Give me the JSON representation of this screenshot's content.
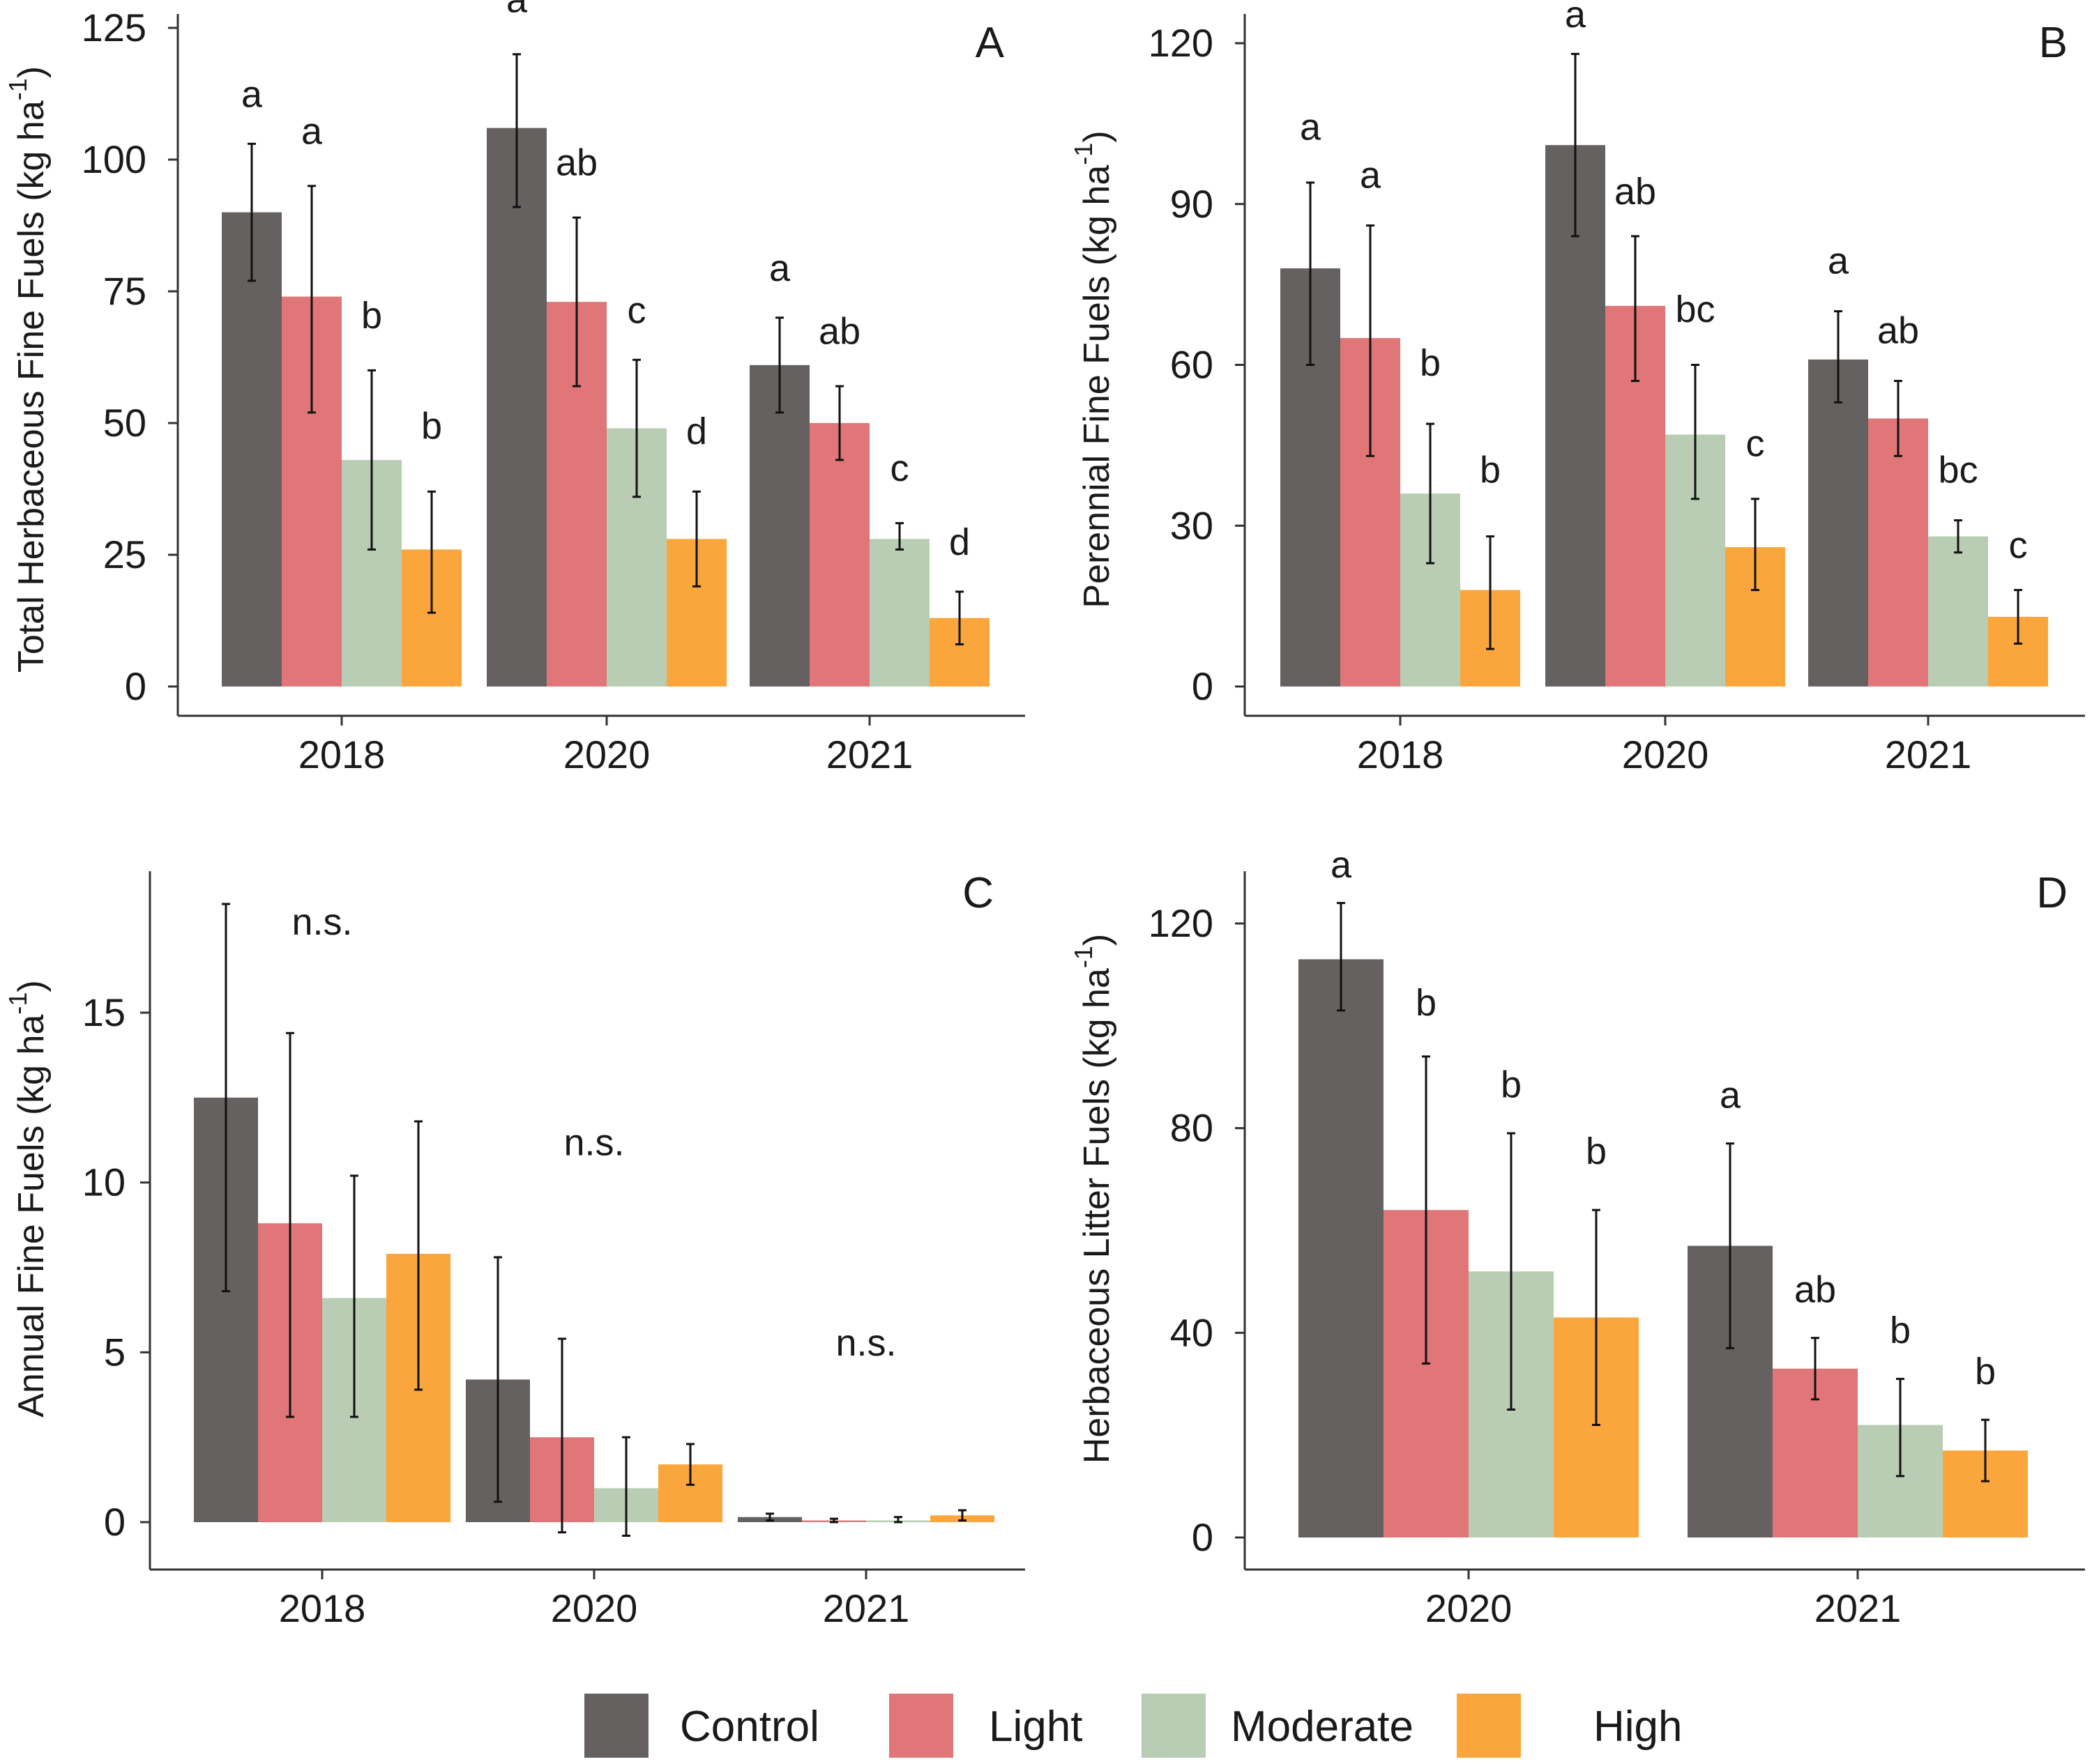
{
  "colors": {
    "Control": "#666161",
    "Light": "#e07677",
    "Moderate": "#b8cdb3",
    "High": "#fba63c"
  },
  "legend": {
    "items": [
      "Control",
      "Light",
      "Moderate",
      "High"
    ]
  },
  "chart_data": [
    {
      "type": "bar",
      "panel": "A",
      "ylabel": "Total Herbaceous Fine Fuels (kg ha",
      "ylabel_sup": "-1",
      "ylabel_tail": ")",
      "ylim": [
        0,
        125
      ],
      "yticks": [
        0,
        25,
        50,
        75,
        100,
        125
      ],
      "categories": [
        "2018",
        "2020",
        "2021"
      ],
      "series": [
        {
          "name": "Control",
          "values": [
            90,
            106,
            61
          ],
          "err": [
            [
              77,
              103
            ],
            [
              91,
              120
            ],
            [
              52,
              70
            ]
          ]
        },
        {
          "name": "Light",
          "values": [
            74,
            73,
            50
          ],
          "err": [
            [
              52,
              95
            ],
            [
              57,
              89
            ],
            [
              43,
              57
            ]
          ]
        },
        {
          "name": "Moderate",
          "values": [
            43,
            49,
            28
          ],
          "err": [
            [
              26,
              60
            ],
            [
              36,
              62
            ],
            [
              26,
              31
            ]
          ]
        },
        {
          "name": "High",
          "values": [
            26,
            28,
            13
          ],
          "err": [
            [
              14,
              37
            ],
            [
              19,
              37
            ],
            [
              8,
              18
            ]
          ]
        }
      ],
      "letters": [
        [
          "a",
          "a",
          "b",
          "b"
        ],
        [
          "a",
          "ab",
          "c",
          "d"
        ],
        [
          "a",
          "ab",
          "c",
          "d"
        ]
      ],
      "letter_y": [
        [
          110,
          103,
          68,
          47
        ],
        [
          128,
          97,
          69,
          46
        ],
        [
          77,
          65,
          39,
          25
        ]
      ]
    },
    {
      "type": "bar",
      "panel": "B",
      "ylabel": "Perennial Fine Fuels (kg ha",
      "ylabel_sup": "-1",
      "ylabel_tail": ")",
      "ylim": [
        0,
        120
      ],
      "yticks": [
        0,
        30,
        60,
        90,
        120
      ],
      "categories": [
        "2018",
        "2020",
        "2021"
      ],
      "series": [
        {
          "name": "Control",
          "values": [
            78,
            101,
            61
          ],
          "err": [
            [
              60,
              94
            ],
            [
              84,
              118
            ],
            [
              53,
              70
            ]
          ]
        },
        {
          "name": "Light",
          "values": [
            65,
            71,
            50
          ],
          "err": [
            [
              43,
              86
            ],
            [
              57,
              84
            ],
            [
              43,
              57
            ]
          ]
        },
        {
          "name": "Moderate",
          "values": [
            36,
            47,
            28
          ],
          "err": [
            [
              23,
              49
            ],
            [
              35,
              60
            ],
            [
              25,
              31
            ]
          ]
        },
        {
          "name": "High",
          "values": [
            18,
            26,
            13
          ],
          "err": [
            [
              7,
              28
            ],
            [
              18,
              35
            ],
            [
              8,
              18
            ]
          ]
        }
      ],
      "letters": [
        [
          "a",
          "a",
          "b",
          "b"
        ],
        [
          "a",
          "ab",
          "bc",
          "c"
        ],
        [
          "a",
          "ab",
          "bc",
          "c"
        ]
      ],
      "letter_y": [
        [
          102,
          93,
          58,
          38
        ],
        [
          123,
          90,
          68,
          43
        ],
        [
          77,
          64,
          38,
          24
        ]
      ]
    },
    {
      "type": "bar",
      "panel": "C",
      "ylabel": "Annual Fine Fuels (kg ha",
      "ylabel_sup": "-1",
      "ylabel_tail": ")",
      "ylim": [
        0,
        18.5
      ],
      "yticks": [
        0,
        5,
        10,
        15
      ],
      "categories": [
        "2018",
        "2020",
        "2021"
      ],
      "series": [
        {
          "name": "Control",
          "values": [
            12.5,
            4.2,
            0.15
          ],
          "err": [
            [
              6.8,
              18.2
            ],
            [
              0.6,
              7.8
            ],
            [
              0.05,
              0.25
            ]
          ]
        },
        {
          "name": "Light",
          "values": [
            8.8,
            2.5,
            0.05
          ],
          "err": [
            [
              3.1,
              14.4
            ],
            [
              -0.3,
              5.4
            ],
            [
              0.0,
              0.1
            ]
          ]
        },
        {
          "name": "Moderate",
          "values": [
            6.6,
            1.0,
            0.05
          ],
          "err": [
            [
              3.1,
              10.2
            ],
            [
              -0.4,
              2.5
            ],
            [
              0.0,
              0.15
            ]
          ]
        },
        {
          "name": "High",
          "values": [
            7.9,
            1.7,
            0.2
          ],
          "err": [
            [
              3.9,
              11.8
            ],
            [
              1.1,
              2.3
            ],
            [
              0.05,
              0.35
            ]
          ]
        }
      ],
      "annotations": [
        "n.s.",
        "n.s.",
        "n.s."
      ],
      "annotation_y": [
        17.3,
        10.8,
        4.9
      ]
    },
    {
      "type": "bar",
      "panel": "D",
      "ylabel": "Herbaceous Litter Fuels (kg ha",
      "ylabel_sup": "-1",
      "ylabel_tail": ")",
      "ylim": [
        0,
        130
      ],
      "yticks": [
        0,
        40,
        80,
        120
      ],
      "categories": [
        "2020",
        "2021"
      ],
      "series": [
        {
          "name": "Control",
          "values": [
            113,
            57
          ],
          "err": [
            [
              103,
              124
            ],
            [
              37,
              77
            ]
          ]
        },
        {
          "name": "Light",
          "values": [
            64,
            33
          ],
          "err": [
            [
              34,
              94
            ],
            [
              27,
              39
            ]
          ]
        },
        {
          "name": "Moderate",
          "values": [
            52,
            22
          ],
          "err": [
            [
              25,
              79
            ],
            [
              12,
              31
            ]
          ]
        },
        {
          "name": "High",
          "values": [
            43,
            17
          ],
          "err": [
            [
              22,
              64
            ],
            [
              11,
              23
            ]
          ]
        }
      ],
      "letters": [
        [
          "a",
          "b",
          "b",
          "b"
        ],
        [
          "a",
          "ab",
          "b",
          "b"
        ]
      ],
      "letter_y": [
        [
          129,
          102,
          86,
          73
        ],
        [
          84,
          46,
          38,
          30
        ]
      ]
    }
  ]
}
